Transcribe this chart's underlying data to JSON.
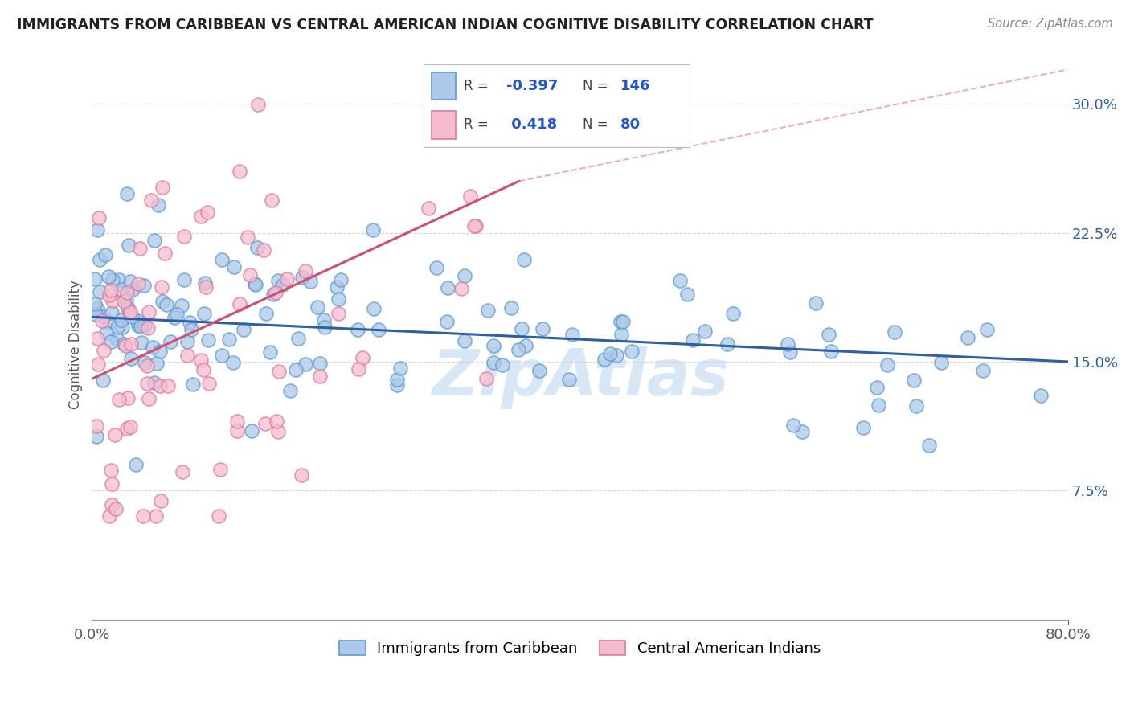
{
  "title": "IMMIGRANTS FROM CARIBBEAN VS CENTRAL AMERICAN INDIAN COGNITIVE DISABILITY CORRELATION CHART",
  "source": "Source: ZipAtlas.com",
  "ylabel": "Cognitive Disability",
  "xmin": 0.0,
  "xmax": 0.8,
  "ymin": 0.0,
  "ymax": 0.32,
  "yticks": [
    0.075,
    0.15,
    0.225,
    0.3
  ],
  "ytick_labels": [
    "7.5%",
    "15.0%",
    "22.5%",
    "30.0%"
  ],
  "xticks": [
    0.0,
    0.8
  ],
  "xtick_labels": [
    "0.0%",
    "80.0%"
  ],
  "series1_name": "Immigrants from Caribbean",
  "series1_color": "#adc8e8",
  "series1_edge_color": "#5b9bd5",
  "series1_line_color": "#2e5fa3",
  "series1_R": -0.397,
  "series1_N": 146,
  "series2_name": "Central American Indians",
  "series2_color": "#f5bcd0",
  "series2_edge_color": "#e07898",
  "series2_line_color": "#d05070",
  "series2_R": 0.418,
  "series2_N": 80,
  "legend_R_color": "#2255cc",
  "legend_N_color": "#2255cc",
  "watermark_color": "#b8d4ee",
  "background_color": "#ffffff",
  "grid_color": "#cccccc"
}
